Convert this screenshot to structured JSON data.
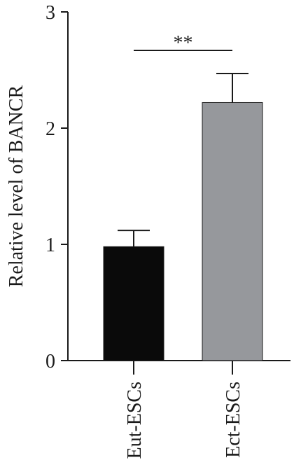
{
  "chart_data": {
    "type": "bar",
    "y_label": "Relative level of BANCR",
    "categories": [
      "Eut-ESCs",
      "Ect-ESCs"
    ],
    "values": [
      0.98,
      2.22
    ],
    "errors": [
      0.14,
      0.25
    ],
    "colors": [
      "#0a0a0a",
      "#96989c"
    ],
    "ylim": [
      0,
      3
    ],
    "yticks": [
      0,
      1,
      2,
      3
    ],
    "annotation": "**"
  }
}
